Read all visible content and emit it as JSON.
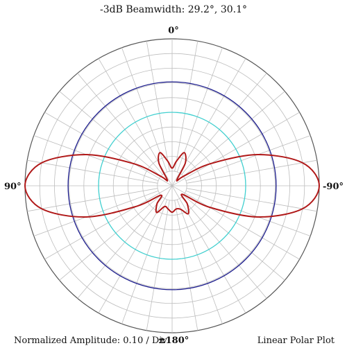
{
  "chart_data": {
    "type": "polar-line",
    "title": "-3dB Beamwidth: 29.2°, 30.1°",
    "angle_labels": {
      "top": "0°",
      "left": "90°",
      "right": "-90°",
      "bottom": "±180°"
    },
    "footer_left": "Normalized Amplitude: 0.10 / Div",
    "footer_right": "Linear Polar Plot",
    "radial_range": [
      0,
      1
    ],
    "radial_divisions": 10,
    "angular_grid_step_deg": 10,
    "reference_circles": [
      {
        "radius": 0.707,
        "color": "#1a1a8c"
      },
      {
        "radius": 0.5,
        "color": "#40d0d0"
      }
    ],
    "series": [
      {
        "color": "#b01818",
        "points": [
          [
            0,
            0.12
          ],
          [
            10,
            0.17
          ],
          [
            20,
            0.24
          ],
          [
            30,
            0.18
          ],
          [
            40,
            0.05
          ],
          [
            50,
            0.1
          ],
          [
            60,
            0.3
          ],
          [
            70,
            0.62
          ],
          [
            80,
            0.9
          ],
          [
            90,
            1.0
          ],
          [
            100,
            0.9
          ],
          [
            110,
            0.62
          ],
          [
            120,
            0.28
          ],
          [
            130,
            0.1
          ],
          [
            140,
            0.16
          ],
          [
            150,
            0.21
          ],
          [
            160,
            0.15
          ],
          [
            170,
            0.16
          ],
          [
            180,
            0.18
          ],
          [
            -170,
            0.16
          ],
          [
            -160,
            0.17
          ],
          [
            -150,
            0.22
          ],
          [
            -140,
            0.16
          ],
          [
            -130,
            0.09
          ],
          [
            -120,
            0.29
          ],
          [
            -110,
            0.62
          ],
          [
            -100,
            0.9
          ],
          [
            -90,
            1.0
          ],
          [
            -80,
            0.9
          ],
          [
            -70,
            0.62
          ],
          [
            -60,
            0.3
          ],
          [
            -50,
            0.1
          ],
          [
            -40,
            0.05
          ],
          [
            -30,
            0.18
          ],
          [
            -20,
            0.24
          ],
          [
            -10,
            0.17
          ]
        ]
      }
    ]
  }
}
